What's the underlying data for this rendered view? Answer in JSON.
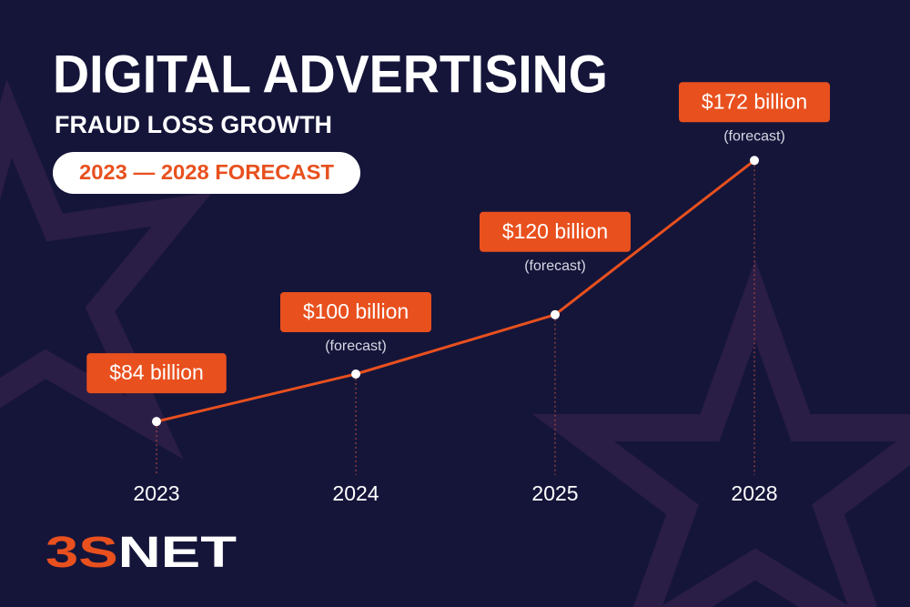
{
  "title": "DIGITAL ADVERTISING",
  "subtitle": "FRAUD LOSS GROWTH",
  "badge": "2023 — 2028 FORECAST",
  "logo_parts": [
    "3S",
    "NET"
  ],
  "chart_data": {
    "type": "line",
    "categories": [
      "2023",
      "2024",
      "2025",
      "2028"
    ],
    "values": [
      84,
      100,
      120,
      172
    ],
    "value_labels": [
      "$84 billion",
      "$100 billion",
      "$120 billion",
      "$172 billion"
    ],
    "annotations": [
      null,
      "(forecast)",
      "(forecast)",
      "(forecast)"
    ],
    "color": "#e8501e",
    "ylim": [
      0,
      200
    ]
  }
}
